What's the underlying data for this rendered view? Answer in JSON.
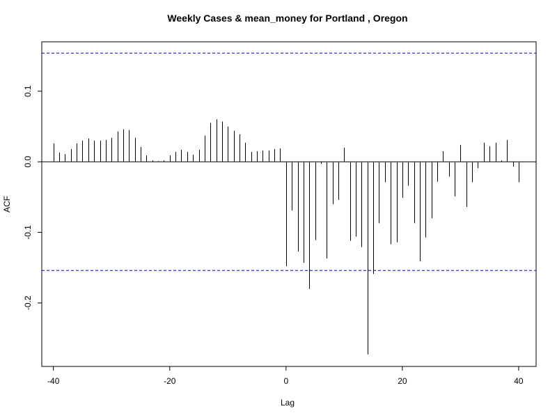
{
  "chart_data": {
    "type": "bar",
    "title": "Weekly Cases & mean_money for Portland , Oregon",
    "xlabel": "Lag",
    "ylabel": "ACF",
    "xlim": [
      -42,
      43
    ],
    "ylim": [
      -0.29,
      0.17
    ],
    "x_ticks": [
      -40,
      -20,
      0,
      20,
      40
    ],
    "x_tick_labels": [
      "-40",
      "-20",
      "0",
      "20",
      "40"
    ],
    "y_ticks": [
      -0.2,
      -0.1,
      0.0,
      0.1
    ],
    "y_tick_labels": [
      "-0.2",
      "-0.1",
      "0.0",
      "0.1"
    ],
    "confidence_bounds": [
      0.154,
      -0.154
    ],
    "confidence_color": "#0000cc",
    "bar_color": "#000000",
    "lags": [
      -40,
      -39,
      -38,
      -37,
      -36,
      -35,
      -34,
      -33,
      -32,
      -31,
      -30,
      -29,
      -28,
      -27,
      -26,
      -25,
      -24,
      -23,
      -22,
      -21,
      -20,
      -19,
      -18,
      -17,
      -16,
      -15,
      -14,
      -13,
      -12,
      -11,
      -10,
      -9,
      -8,
      -7,
      -6,
      -5,
      -4,
      -3,
      -2,
      -1,
      0,
      1,
      2,
      3,
      4,
      5,
      6,
      7,
      8,
      9,
      10,
      11,
      12,
      13,
      14,
      15,
      16,
      17,
      18,
      19,
      20,
      21,
      22,
      23,
      24,
      25,
      26,
      27,
      28,
      29,
      30,
      31,
      32,
      33,
      34,
      35,
      36,
      37,
      38,
      39,
      40
    ],
    "acf": [
      0.026,
      0.013,
      0.011,
      0.018,
      0.026,
      0.03,
      0.033,
      0.03,
      0.03,
      0.031,
      0.034,
      0.043,
      0.046,
      0.045,
      0.034,
      0.021,
      0.009,
      0.002,
      0.001,
      0.002,
      0.009,
      0.014,
      0.017,
      0.014,
      0.01,
      0.017,
      0.037,
      0.055,
      0.06,
      0.057,
      0.05,
      0.044,
      0.039,
      0.027,
      0.014,
      0.015,
      0.016,
      0.016,
      0.018,
      0.019,
      -0.148,
      -0.069,
      -0.127,
      -0.143,
      -0.18,
      -0.111,
      -0.003,
      -0.137,
      -0.06,
      -0.054,
      0.02,
      -0.112,
      -0.106,
      -0.121,
      -0.273,
      -0.159,
      -0.087,
      -0.029,
      -0.117,
      -0.114,
      -0.051,
      -0.034,
      -0.087,
      -0.141,
      -0.107,
      -0.08,
      -0.028,
      0.015,
      -0.021,
      -0.049,
      0.024,
      -0.064,
      -0.029,
      -0.009,
      0.027,
      0.022,
      0.027,
      0.002,
      0.031,
      -0.007,
      -0.029
    ]
  }
}
